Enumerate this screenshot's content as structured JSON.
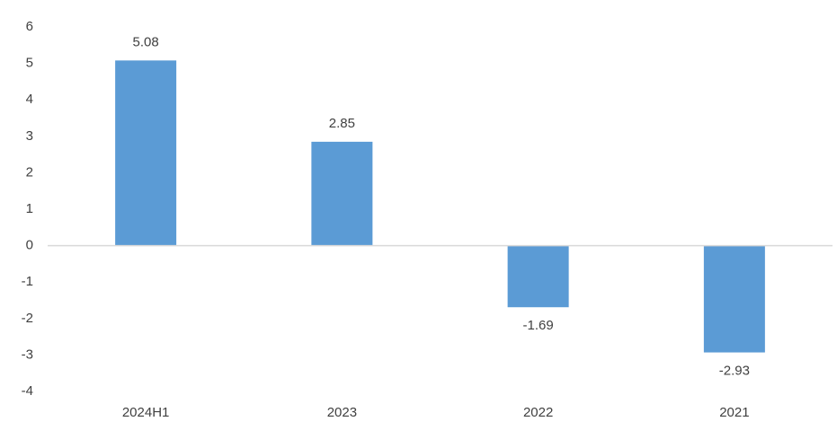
{
  "chart_data": {
    "type": "bar",
    "categories": [
      "2024H1",
      "2023",
      "2022",
      "2021"
    ],
    "values": [
      5.08,
      2.85,
      -1.69,
      -2.93
    ],
    "color": "#5b9bd5",
    "ylim": [
      -4,
      6
    ],
    "yticks": [
      -4,
      -3,
      -2,
      -1,
      0,
      1,
      2,
      3,
      4,
      5,
      6
    ],
    "grid": false
  }
}
